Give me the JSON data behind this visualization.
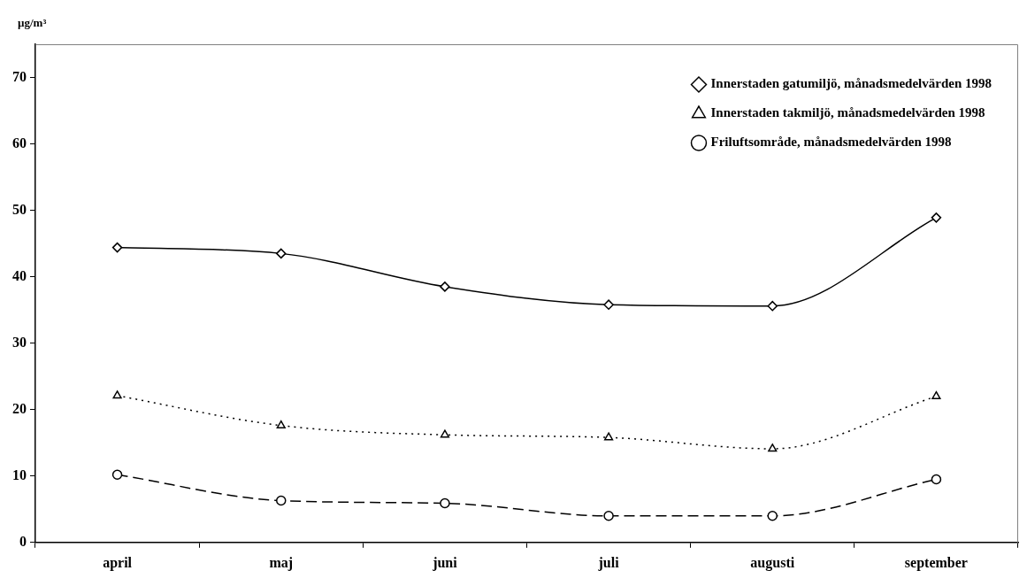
{
  "chart_data": {
    "type": "line",
    "ylabel": "µg/m³",
    "categories": [
      "april",
      "maj",
      "juni",
      "juli",
      "augusti",
      "september"
    ],
    "series": [
      {
        "name": "Innerstaden gatumiljö, månadsmedelvärden 1998",
        "color": "#000000",
        "marker": "diamond",
        "line_style": "solid",
        "values": [
          44.4,
          43.5,
          38.5,
          35.8,
          35.6,
          48.9
        ]
      },
      {
        "name": "Innerstaden takmiljö, månadsmedelvärden 1998",
        "color": "#000000",
        "marker": "triangle",
        "line_style": "dotted",
        "values": [
          22.1,
          17.6,
          16.2,
          15.8,
          14.1,
          22.0
        ]
      },
      {
        "name": "Friluftsområde, månadsmedelvärden 1998",
        "color": "#000000",
        "marker": "circle",
        "line_style": "dashed",
        "values": [
          10.2,
          6.3,
          5.9,
          4.0,
          4.0,
          9.5
        ]
      }
    ],
    "ylim": [
      0,
      75
    ],
    "yticks": [
      0,
      10,
      20,
      30,
      40,
      50,
      60,
      70
    ],
    "grid": false,
    "legend": "top right"
  }
}
